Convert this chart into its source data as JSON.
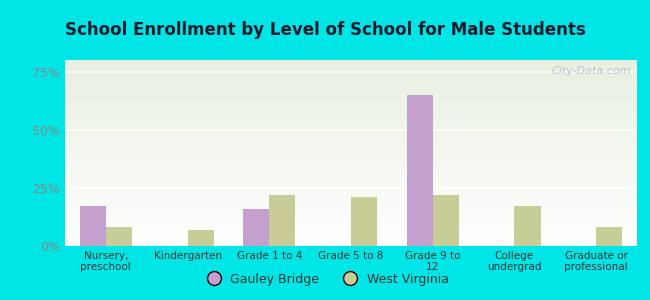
{
  "title": "School Enrollment by Level of School for Male Students",
  "categories": [
    "Nursery,\npreschool",
    "Kindergarten",
    "Grade 1 to 4",
    "Grade 5 to 8",
    "Grade 9 to\n12",
    "College\nundergrad",
    "Graduate or\nprofessional"
  ],
  "gauley_bridge": [
    17.0,
    0.0,
    16.0,
    0.0,
    65.0,
    0.0,
    0.0
  ],
  "west_virginia": [
    8.0,
    7.0,
    22.0,
    21.0,
    22.0,
    17.0,
    8.0
  ],
  "gauley_color": "#c4a0cc",
  "wv_color": "#c8cc96",
  "background_color": "#00e5e5",
  "ylim": [
    0,
    80
  ],
  "yticks": [
    0,
    25,
    50,
    75
  ],
  "ytick_labels": [
    "0%",
    "25%",
    "50%",
    "75%"
  ],
  "legend_gauley": "Gauley Bridge",
  "legend_wv": "West Virginia",
  "watermark": "City-Data.com",
  "title_color": "#1a1a2e",
  "tick_color": "#888888",
  "bar_width": 0.32
}
